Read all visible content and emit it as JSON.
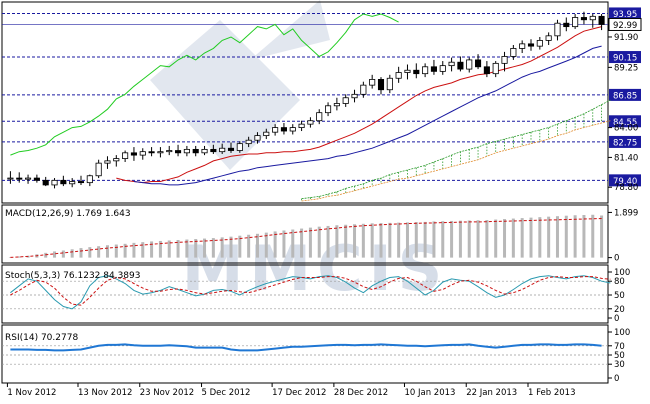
{
  "colors": {
    "frame": "#000000",
    "level_line": "#1a1aa0",
    "badge_bg": "#1a1aa0",
    "badge_text": "#ffffff",
    "up_candle": "#ffffff",
    "down_candle": "#000000",
    "green_line": "#22cc22",
    "red_line": "#cc1111",
    "blue_line": "#1a1aa0",
    "cloud_green": "#2a9a2a",
    "cloud_orange": "#e08a2a",
    "macd_bar": "#b8b8b8",
    "macd_signal": "#cc1111",
    "stoch_main": "#2a9ab0",
    "stoch_signal": "#cc1111",
    "rsi_line": "#1f77d4",
    "watermark": "#d6dde8"
  },
  "chart_data": [
    {
      "type": "candlestick",
      "panel": "price",
      "y_ticks": [
        "91.90",
        "89.25",
        "84.00",
        "81.40",
        "78.80"
      ],
      "levels": [
        {
          "value": "93.95",
          "badge": true
        },
        {
          "value": "92.99",
          "badge": false,
          "current": true
        },
        {
          "value": "90.15",
          "badge": true
        },
        {
          "value": "86.85",
          "badge": true
        },
        {
          "value": "84.55",
          "badge": true
        },
        {
          "value": "82.75",
          "badge": true
        },
        {
          "value": "79.40",
          "badge": true
        }
      ],
      "ylim": [
        77.6,
        94.6
      ],
      "candles": [
        [
          79.6,
          80.2,
          79.1,
          79.6
        ],
        [
          79.6,
          80.1,
          79.2,
          79.5
        ],
        [
          79.5,
          79.9,
          79.1,
          79.6
        ],
        [
          79.6,
          79.9,
          79.2,
          79.4
        ],
        [
          79.4,
          79.7,
          78.9,
          79.0
        ],
        [
          79.0,
          79.6,
          78.7,
          79.4
        ],
        [
          79.4,
          79.8,
          78.9,
          79.1
        ],
        [
          79.1,
          79.6,
          78.8,
          79.3
        ],
        [
          79.3,
          79.8,
          79.0,
          79.2
        ],
        [
          79.2,
          79.9,
          78.9,
          79.8
        ],
        [
          79.8,
          81.2,
          79.6,
          80.9
        ],
        [
          80.9,
          81.5,
          80.4,
          81.1
        ],
        [
          81.1,
          81.6,
          80.6,
          81.3
        ],
        [
          81.3,
          82.0,
          81.0,
          81.8
        ],
        [
          81.8,
          82.3,
          81.1,
          81.6
        ],
        [
          81.6,
          82.2,
          81.2,
          81.9
        ],
        [
          81.9,
          82.3,
          81.5,
          81.8
        ],
        [
          81.8,
          82.3,
          81.4,
          81.9
        ],
        [
          81.9,
          82.4,
          81.6,
          82.0
        ],
        [
          82.0,
          82.5,
          81.5,
          81.8
        ],
        [
          81.8,
          82.4,
          81.5,
          82.1
        ],
        [
          82.1,
          82.4,
          81.5,
          81.8
        ],
        [
          81.8,
          82.4,
          81.6,
          82.1
        ],
        [
          82.1,
          82.5,
          81.7,
          81.9
        ],
        [
          81.9,
          82.6,
          81.7,
          82.2
        ],
        [
          82.2,
          82.7,
          81.8,
          82.0
        ],
        [
          82.0,
          82.8,
          81.8,
          82.6
        ],
        [
          82.6,
          83.2,
          82.3,
          82.9
        ],
        [
          82.9,
          83.6,
          82.6,
          83.3
        ],
        [
          83.3,
          83.9,
          83.0,
          83.6
        ],
        [
          83.6,
          84.3,
          83.3,
          84.0
        ],
        [
          84.0,
          84.4,
          83.4,
          83.7
        ],
        [
          83.7,
          84.3,
          83.4,
          84.0
        ],
        [
          84.0,
          84.6,
          83.7,
          84.3
        ],
        [
          84.3,
          84.9,
          84.0,
          84.6
        ],
        [
          84.6,
          85.6,
          84.3,
          85.3
        ],
        [
          85.3,
          86.2,
          85.0,
          85.9
        ],
        [
          85.9,
          86.6,
          85.5,
          86.1
        ],
        [
          86.1,
          86.9,
          85.8,
          86.6
        ],
        [
          86.6,
          87.3,
          86.2,
          86.9
        ],
        [
          86.9,
          88.0,
          86.6,
          87.7
        ],
        [
          87.7,
          88.6,
          87.4,
          88.2
        ],
        [
          88.2,
          88.4,
          86.9,
          87.3
        ],
        [
          87.3,
          88.6,
          87.0,
          88.3
        ],
        [
          88.3,
          89.3,
          87.9,
          88.8
        ],
        [
          88.8,
          89.5,
          88.2,
          89.0
        ],
        [
          89.0,
          89.6,
          88.3,
          88.7
        ],
        [
          88.7,
          89.6,
          88.4,
          89.3
        ],
        [
          89.3,
          89.9,
          88.6,
          88.9
        ],
        [
          88.9,
          89.8,
          88.6,
          89.4
        ],
        [
          89.4,
          90.1,
          88.9,
          89.7
        ],
        [
          89.7,
          90.2,
          88.9,
          89.1
        ],
        [
          89.1,
          90.1,
          88.8,
          89.9
        ],
        [
          89.9,
          90.4,
          89.1,
          89.3
        ],
        [
          89.3,
          89.8,
          88.4,
          88.7
        ],
        [
          88.7,
          89.8,
          88.4,
          89.6
        ],
        [
          89.6,
          90.6,
          88.9,
          90.2
        ],
        [
          90.2,
          91.2,
          89.9,
          90.9
        ],
        [
          90.9,
          91.6,
          90.5,
          91.3
        ],
        [
          91.3,
          91.7,
          90.7,
          91.1
        ],
        [
          91.1,
          91.9,
          90.8,
          91.6
        ],
        [
          91.6,
          92.3,
          91.2,
          92.0
        ],
        [
          92.0,
          93.4,
          91.6,
          93.1
        ],
        [
          93.1,
          93.6,
          92.4,
          92.8
        ],
        [
          92.8,
          93.9,
          92.6,
          93.6
        ],
        [
          93.6,
          94.1,
          93.0,
          93.4
        ],
        [
          93.4,
          93.9,
          92.7,
          93.7
        ],
        [
          93.7,
          93.9,
          92.5,
          92.99
        ]
      ],
      "green_line": [
        81.6,
        81.9,
        82.0,
        82.2,
        82.5,
        83.2,
        83.6,
        84.0,
        84.1,
        84.5,
        85.0,
        85.6,
        86.5,
        86.9,
        87.6,
        88.2,
        88.8,
        89.4,
        89.3,
        89.9,
        90.3,
        89.9,
        90.5,
        90.9,
        91.6,
        91.9,
        91.4,
        92.1,
        92.8,
        92.6,
        93.0,
        92.1,
        92.6,
        91.6,
        90.9,
        90.2,
        90.6,
        91.4,
        92.3,
        93.4,
        93.9,
        93.7,
        93.9,
        93.6,
        93.2
      ],
      "red_line": [
        79.6,
        79.4,
        79.3,
        79.2,
        79.3,
        79.3,
        79.5,
        79.7,
        80.1,
        80.4,
        80.7,
        81.1,
        81.3,
        81.5,
        81.6,
        81.7,
        81.7,
        81.8,
        81.8,
        81.9,
        81.9,
        82.0,
        82.1,
        82.3,
        82.6,
        82.9,
        83.2,
        83.5,
        83.9,
        84.3,
        84.8,
        85.3,
        85.8,
        86.3,
        86.8,
        87.2,
        87.5,
        87.7,
        87.9,
        88.2,
        88.4,
        88.6,
        88.7,
        88.9,
        89.1,
        89.3,
        89.5,
        89.8,
        90.2,
        90.6,
        91.0,
        91.5,
        92.0,
        92.4,
        92.6,
        92.8
      ],
      "blue_line": [
        79.3,
        79.2,
        79.1,
        79.1,
        79.0,
        79.0,
        79.1,
        79.2,
        79.4,
        79.6,
        79.8,
        80.0,
        80.2,
        80.3,
        80.5,
        80.6,
        80.7,
        80.8,
        80.9,
        81.0,
        81.1,
        81.2,
        81.3,
        81.5,
        81.6,
        81.8,
        82.0,
        82.2,
        82.5,
        82.8,
        83.1,
        83.4,
        83.8,
        84.2,
        84.6,
        85.0,
        85.4,
        85.8,
        86.2,
        86.6,
        86.9,
        87.2,
        87.6,
        88.0,
        88.4,
        88.7,
        88.9,
        89.2,
        89.5,
        89.8,
        90.1,
        90.5,
        90.9,
        91.1
      ],
      "cloud_a": [
        77.8,
        77.9,
        78.0,
        78.2,
        78.4,
        78.7,
        78.9,
        79.1,
        79.4,
        79.6,
        79.9,
        80.1,
        80.3,
        80.5,
        80.7,
        81.0,
        81.3,
        81.6,
        81.9,
        82.1,
        82.3,
        82.6,
        82.8,
        83.0,
        83.2,
        83.4,
        83.6,
        83.8,
        84.0,
        84.3,
        84.6,
        84.9,
        85.2,
        85.6,
        86.0,
        86.4,
        86.85
      ],
      "cloud_b": [
        77.6,
        77.7,
        77.8,
        78.0,
        78.1,
        78.3,
        78.5,
        78.7,
        78.9,
        79.1,
        79.3,
        79.5,
        79.6,
        79.8,
        80.0,
        80.2,
        80.4,
        80.6,
        80.8,
        81.0,
        81.2,
        81.5,
        81.8,
        82.0,
        82.2,
        82.4,
        82.6,
        82.8,
        83.0,
        83.3,
        83.5,
        83.8,
        84.0,
        84.2,
        84.4,
        84.6,
        84.9
      ]
    },
    {
      "type": "bar",
      "panel": "macd",
      "label": "MACD(12,26,9) 1.769 1.643",
      "y_ticks": [
        "1.899",
        "0"
      ],
      "ylim": [
        -0.1,
        2.0
      ],
      "values": [
        0.02,
        0.05,
        0.08,
        0.14,
        0.2,
        0.26,
        0.3,
        0.35,
        0.4,
        0.44,
        0.48,
        0.52,
        0.55,
        0.58,
        0.62,
        0.65,
        0.68,
        0.7,
        0.72,
        0.74,
        0.76,
        0.78,
        0.8,
        0.82,
        0.85,
        0.88,
        0.92,
        0.96,
        1.0,
        1.05,
        1.1,
        1.14,
        1.18,
        1.22,
        1.26,
        1.3,
        1.33,
        1.36,
        1.38,
        1.4,
        1.42,
        1.44,
        1.45,
        1.46,
        1.47,
        1.48,
        1.49,
        1.5,
        1.52,
        1.53,
        1.54,
        1.55,
        1.56,
        1.57,
        1.58,
        1.6,
        1.62,
        1.64,
        1.66,
        1.68,
        1.7,
        1.72,
        1.74,
        1.76,
        1.78,
        1.79,
        1.8,
        1.769
      ],
      "signal": [
        0.01,
        0.03,
        0.05,
        0.08,
        0.12,
        0.16,
        0.2,
        0.24,
        0.28,
        0.32,
        0.36,
        0.4,
        0.43,
        0.47,
        0.5,
        0.53,
        0.56,
        0.59,
        0.62,
        0.64,
        0.66,
        0.68,
        0.7,
        0.72,
        0.74,
        0.77,
        0.8,
        0.84,
        0.88,
        0.92,
        0.97,
        1.01,
        1.05,
        1.09,
        1.13,
        1.17,
        1.21,
        1.24,
        1.28,
        1.31,
        1.34,
        1.36,
        1.38,
        1.4,
        1.41,
        1.43,
        1.44,
        1.45,
        1.46,
        1.47,
        1.48,
        1.49,
        1.5,
        1.5,
        1.51,
        1.52,
        1.53,
        1.54,
        1.55,
        1.56,
        1.57,
        1.58,
        1.59,
        1.6,
        1.61,
        1.62,
        1.63,
        1.643
      ]
    },
    {
      "type": "line",
      "panel": "stoch",
      "label": "Stoch(5,3,3) 76.1232 84.3893",
      "y_ticks": [
        "100",
        "80",
        "50",
        "20",
        "0"
      ],
      "ylim": [
        0,
        100
      ],
      "main": [
        55,
        70,
        85,
        80,
        60,
        40,
        25,
        20,
        35,
        70,
        88,
        92,
        85,
        75,
        60,
        52,
        55,
        60,
        68,
        62,
        55,
        48,
        52,
        60,
        62,
        58,
        50,
        60,
        68,
        75,
        80,
        85,
        90,
        88,
        85,
        90,
        92,
        88,
        78,
        65,
        55,
        70,
        80,
        88,
        90,
        80,
        65,
        50,
        60,
        78,
        85,
        82,
        80,
        68,
        55,
        45,
        50,
        62,
        75,
        85,
        90,
        92,
        88,
        85,
        90,
        92,
        88,
        80,
        76.1232
      ],
      "signal": [
        50,
        60,
        72,
        82,
        78,
        65,
        45,
        30,
        28,
        45,
        65,
        82,
        88,
        85,
        75,
        65,
        58,
        58,
        62,
        63,
        60,
        55,
        52,
        55,
        58,
        60,
        57,
        55,
        60,
        66,
        72,
        78,
        84,
        88,
        88,
        88,
        90,
        90,
        86,
        78,
        68,
        62,
        68,
        78,
        86,
        88,
        80,
        68,
        58,
        62,
        72,
        80,
        82,
        78,
        70,
        60,
        52,
        55,
        62,
        72,
        82,
        88,
        90,
        88,
        88,
        90,
        90,
        86,
        84.3893
      ]
    },
    {
      "type": "line",
      "panel": "rsi",
      "label": "RSI(14) 70.2778",
      "y_ticks": [
        "100",
        "70",
        "50",
        "30",
        "0"
      ],
      "ylim": [
        0,
        100
      ],
      "values": [
        62,
        62,
        62,
        61,
        61,
        60,
        60,
        61,
        62,
        66,
        70,
        72,
        72,
        73,
        71,
        70,
        70,
        70,
        71,
        70,
        69,
        66,
        66,
        66,
        66,
        62,
        60,
        60,
        60,
        62,
        64,
        66,
        68,
        68,
        69,
        70,
        71,
        72,
        72,
        71,
        72,
        72,
        73,
        72,
        71,
        70,
        70,
        69,
        70,
        71,
        72,
        72,
        73,
        70,
        68,
        66,
        68,
        70,
        72,
        72,
        73,
        73,
        72,
        72,
        73,
        73,
        72,
        70.2778
      ]
    }
  ],
  "x_axis": {
    "labels": [
      "1 Nov 2012",
      "13 Nov 2012",
      "23 Nov 2012",
      "5 Dec 2012",
      "17 Dec 2012",
      "28 Dec 2012",
      "10 Jan 2013",
      "22 Jan 2013",
      "1 Feb 2013"
    ]
  },
  "watermark": {
    "text": "MMCIS"
  }
}
